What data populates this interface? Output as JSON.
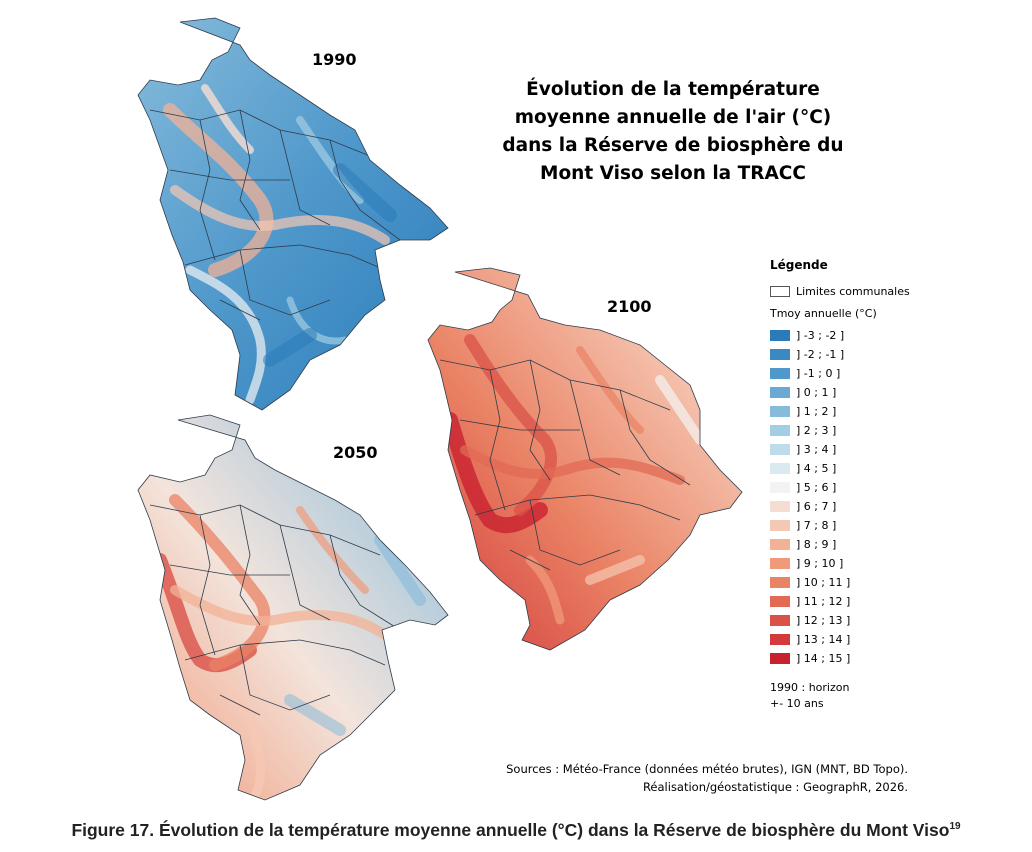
{
  "title": "Évolution de la température moyenne annuelle de l'air (°C) dans la Réserve de biosphère du Mont Viso selon la TRACC",
  "title_lines": [
    "Évolution de la température",
    "moyenne annuelle de l'air (°C)",
    "dans la Réserve de biosphère du",
    "Mont Viso selon la TRACC"
  ],
  "maps": [
    {
      "year": "1990",
      "scheme": "cold"
    },
    {
      "year": "2050",
      "scheme": "mixed"
    },
    {
      "year": "2100",
      "scheme": "warm"
    }
  ],
  "legend": {
    "title": "Légende",
    "boundary_label": "Limites communales",
    "subtitle": "Tmoy annuelle (°C)",
    "classes": [
      {
        "label": "] -3 ; -2 ]",
        "color": "#2b7bb9"
      },
      {
        "label": "] -2 ; -1 ]",
        "color": "#3a89c2"
      },
      {
        "label": "] -1 ; 0 ]",
        "color": "#4f98cb"
      },
      {
        "label": "] 0 ; 1 ]",
        "color": "#6aa9d3"
      },
      {
        "label": "] 1 ; 2 ]",
        "color": "#86bbdb"
      },
      {
        "label": "] 2 ; 3 ]",
        "color": "#a3cde3"
      },
      {
        "label": "] 3 ; 4 ]",
        "color": "#bfdcea"
      },
      {
        "label": "] 4 ; 5 ]",
        "color": "#dbe9f0"
      },
      {
        "label": "] 5 ; 6 ]",
        "color": "#f3f3f3"
      },
      {
        "label": "] 6 ; 7 ]",
        "color": "#f6ddd2"
      },
      {
        "label": "] 7 ; 8 ]",
        "color": "#f5c8b4"
      },
      {
        "label": "] 8 ; 9 ]",
        "color": "#f3b296"
      },
      {
        "label": "] 9 ; 10 ]",
        "color": "#f09a7a"
      },
      {
        "label": "] 10 ; 11 ]",
        "color": "#ea8264"
      },
      {
        "label": "] 11 ; 12 ]",
        "color": "#e26a54"
      },
      {
        "label": "] 12 ; 13 ]",
        "color": "#d95148"
      },
      {
        "label": "] 13 ; 14 ]",
        "color": "#d23a3c"
      },
      {
        "label": "] 14 ; 15 ]",
        "color": "#c9222f"
      }
    ],
    "note_line1": "1990 : horizon",
    "note_line2": "+- 10 ans"
  },
  "sources_line1": "Sources : Météo-France (données météo brutes), IGN (MNT, BD Topo).",
  "sources_line2": "Réalisation/géostatistique : GeographR, 2026.",
  "caption": "Figure 17. Évolution de la température moyenne annuelle (°C) dans la Réserve de biosphère du Mont Viso",
  "caption_sup": "19",
  "colors": {
    "boundary": "#2f3b4a",
    "cold_base": "#3a89c2",
    "warm_base": "#e26a54"
  }
}
